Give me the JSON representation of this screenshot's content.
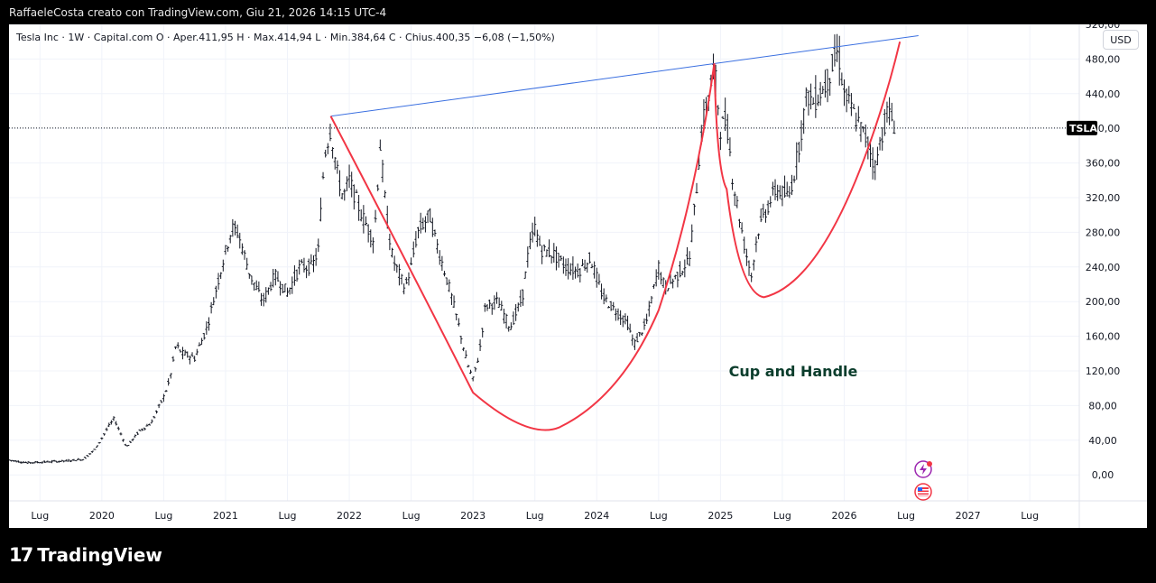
{
  "frame_title": "RaffaeleCosta creato con TradingView.com, Giu 21, 2026 14:15 UTC-4",
  "legend": "Tesla Inc · 1W · Capital.com  O · Aper.411,95  H · Max.414,94  L · Min.384,64  C · Chius.400,35  −6,08 (−1,50%)",
  "currency": "USD",
  "ticker_badge": "TSLA",
  "annotation": "Cup and Handle",
  "brand": "TradingView",
  "colors": {
    "candles": "#131722",
    "trendline": "#3a6fe0",
    "cup_curve": "#f23645",
    "annotation": "#0b3d2c",
    "badge_bg": "#000000"
  },
  "icons": [
    "lightning-icon",
    "us-flag-icon"
  ],
  "chart_data": {
    "type": "line",
    "title": "",
    "ylabel": "",
    "xlabel": "",
    "ylim": [
      -30,
      520
    ],
    "grid": true,
    "y_ticks": [
      "0,00",
      "40,00",
      "80,00",
      "120,00",
      "160,00",
      "200,00",
      "240,00",
      "280,00",
      "320,00",
      "360,00",
      "400,00",
      "440,00",
      "480,00",
      "520,00"
    ],
    "x_ticks": [
      {
        "label": "Lug",
        "t": 2019.5
      },
      {
        "label": "2020",
        "t": 2020.0
      },
      {
        "label": "Lug",
        "t": 2020.5
      },
      {
        "label": "2021",
        "t": 2021.0
      },
      {
        "label": "Lug",
        "t": 2021.5
      },
      {
        "label": "2022",
        "t": 2022.0
      },
      {
        "label": "Lug",
        "t": 2022.5
      },
      {
        "label": "2023",
        "t": 2023.0
      },
      {
        "label": "Lug",
        "t": 2023.5
      },
      {
        "label": "2024",
        "t": 2024.0
      },
      {
        "label": "Lug",
        "t": 2024.5
      },
      {
        "label": "2025",
        "t": 2025.0
      },
      {
        "label": "Lug",
        "t": 2025.5
      },
      {
        "label": "2026",
        "t": 2026.0
      },
      {
        "label": "Lug",
        "t": 2026.5
      },
      {
        "label": "2027",
        "t": 2027.0
      },
      {
        "label": "Lug",
        "t": 2027.5
      }
    ],
    "last_price": 400.35,
    "x_range": [
      2019.25,
      2027.9
    ],
    "price_series": {
      "name": "",
      "points": [
        [
          2019.25,
          17
        ],
        [
          2019.4,
          14
        ],
        [
          2019.55,
          15
        ],
        [
          2019.7,
          16
        ],
        [
          2019.85,
          18
        ],
        [
          2019.95,
          30
        ],
        [
          2020.05,
          55
        ],
        [
          2020.1,
          65
        ],
        [
          2020.2,
          32
        ],
        [
          2020.3,
          50
        ],
        [
          2020.4,
          60
        ],
        [
          2020.5,
          90
        ],
        [
          2020.55,
          110
        ],
        [
          2020.6,
          150
        ],
        [
          2020.65,
          140
        ],
        [
          2020.75,
          135
        ],
        [
          2020.85,
          170
        ],
        [
          2020.95,
          230
        ],
        [
          2021.05,
          285
        ],
        [
          2021.1,
          280
        ],
        [
          2021.2,
          230
        ],
        [
          2021.3,
          200
        ],
        [
          2021.4,
          230
        ],
        [
          2021.5,
          210
        ],
        [
          2021.6,
          240
        ],
        [
          2021.7,
          240
        ],
        [
          2021.75,
          260
        ],
        [
          2021.8,
          370
        ],
        [
          2021.85,
          400
        ],
        [
          2021.9,
          350
        ],
        [
          2021.95,
          320
        ],
        [
          2022.0,
          340
        ],
        [
          2022.1,
          300
        ],
        [
          2022.2,
          270
        ],
        [
          2022.25,
          380
        ],
        [
          2022.3,
          300
        ],
        [
          2022.35,
          250
        ],
        [
          2022.45,
          215
        ],
        [
          2022.5,
          240
        ],
        [
          2022.55,
          280
        ],
        [
          2022.65,
          300
        ],
        [
          2022.7,
          270
        ],
        [
          2022.8,
          220
        ],
        [
          2022.88,
          175
        ],
        [
          2022.95,
          130
        ],
        [
          2023.0,
          110
        ],
        [
          2023.05,
          140
        ],
        [
          2023.1,
          195
        ],
        [
          2023.2,
          200
        ],
        [
          2023.3,
          170
        ],
        [
          2023.4,
          205
        ],
        [
          2023.45,
          260
        ],
        [
          2023.5,
          285
        ],
        [
          2023.55,
          260
        ],
        [
          2023.65,
          255
        ],
        [
          2023.75,
          240
        ],
        [
          2023.85,
          235
        ],
        [
          2023.95,
          250
        ],
        [
          2024.05,
          205
        ],
        [
          2024.15,
          190
        ],
        [
          2024.25,
          175
        ],
        [
          2024.3,
          150
        ],
        [
          2024.4,
          175
        ],
        [
          2024.5,
          240
        ],
        [
          2024.55,
          215
        ],
        [
          2024.65,
          230
        ],
        [
          2024.75,
          250
        ],
        [
          2024.8,
          320
        ],
        [
          2024.85,
          400
        ],
        [
          2024.95,
          470
        ],
        [
          2025.0,
          400
        ],
        [
          2025.05,
          410
        ],
        [
          2025.1,
          340
        ],
        [
          2025.2,
          260
        ],
        [
          2025.25,
          230
        ],
        [
          2025.3,
          280
        ],
        [
          2025.35,
          300
        ],
        [
          2025.45,
          330
        ],
        [
          2025.55,
          320
        ],
        [
          2025.6,
          350
        ],
        [
          2025.7,
          440
        ],
        [
          2025.75,
          430
        ],
        [
          2025.85,
          450
        ],
        [
          2025.95,
          490
        ],
        [
          2026.0,
          440
        ],
        [
          2026.1,
          410
        ],
        [
          2026.2,
          380
        ],
        [
          2026.25,
          355
        ],
        [
          2026.3,
          390
        ],
        [
          2026.35,
          420
        ],
        [
          2026.42,
          400
        ]
      ]
    }
  }
}
